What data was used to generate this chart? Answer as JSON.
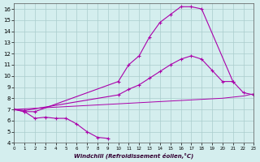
{
  "xlabel": "Windchill (Refroidissement éolien,°C)",
  "xlim": [
    0,
    23
  ],
  "ylim": [
    4,
    16.5
  ],
  "yticks": [
    4,
    5,
    6,
    7,
    8,
    9,
    10,
    11,
    12,
    13,
    14,
    15,
    16
  ],
  "xticks": [
    0,
    1,
    2,
    3,
    4,
    5,
    6,
    7,
    8,
    9,
    10,
    11,
    12,
    13,
    14,
    15,
    16,
    17,
    18,
    19,
    20,
    21,
    22,
    23
  ],
  "bg_color": "#d4eeee",
  "line_color": "#aa00aa",
  "grid_color": "#aacccc",
  "line1_x": [
    0,
    1,
    2,
    3,
    4,
    5,
    6,
    7,
    8,
    9
  ],
  "line1_y": [
    7.0,
    6.8,
    6.2,
    6.3,
    6.2,
    6.2,
    5.7,
    5.0,
    4.5,
    4.4
  ],
  "line2_x": [
    0,
    1,
    2,
    10,
    11,
    12,
    13,
    14,
    15,
    16,
    17,
    18,
    21
  ],
  "line2_y": [
    7.0,
    6.8,
    6.8,
    9.5,
    11.0,
    11.8,
    13.5,
    14.8,
    15.5,
    16.2,
    16.2,
    16.0,
    9.5
  ],
  "line3_x": [
    0,
    1,
    10,
    11,
    12,
    13,
    14,
    15,
    16,
    17,
    18,
    19,
    20,
    21,
    22,
    23
  ],
  "line3_y": [
    7.0,
    6.9,
    8.3,
    8.8,
    9.2,
    9.8,
    10.4,
    11.0,
    11.5,
    11.8,
    11.5,
    10.5,
    9.5,
    9.5,
    8.5,
    8.3
  ],
  "line4_x": [
    0,
    1,
    2,
    3,
    4,
    5,
    6,
    7,
    8,
    9,
    10,
    11,
    12,
    13,
    14,
    15,
    16,
    17,
    18,
    19,
    20,
    21,
    22,
    23
  ],
  "line4_y": [
    7.0,
    7.05,
    7.1,
    7.15,
    7.2,
    7.25,
    7.3,
    7.35,
    7.4,
    7.45,
    7.5,
    7.55,
    7.6,
    7.65,
    7.7,
    7.75,
    7.8,
    7.85,
    7.9,
    7.95,
    8.0,
    8.1,
    8.2,
    8.4
  ]
}
